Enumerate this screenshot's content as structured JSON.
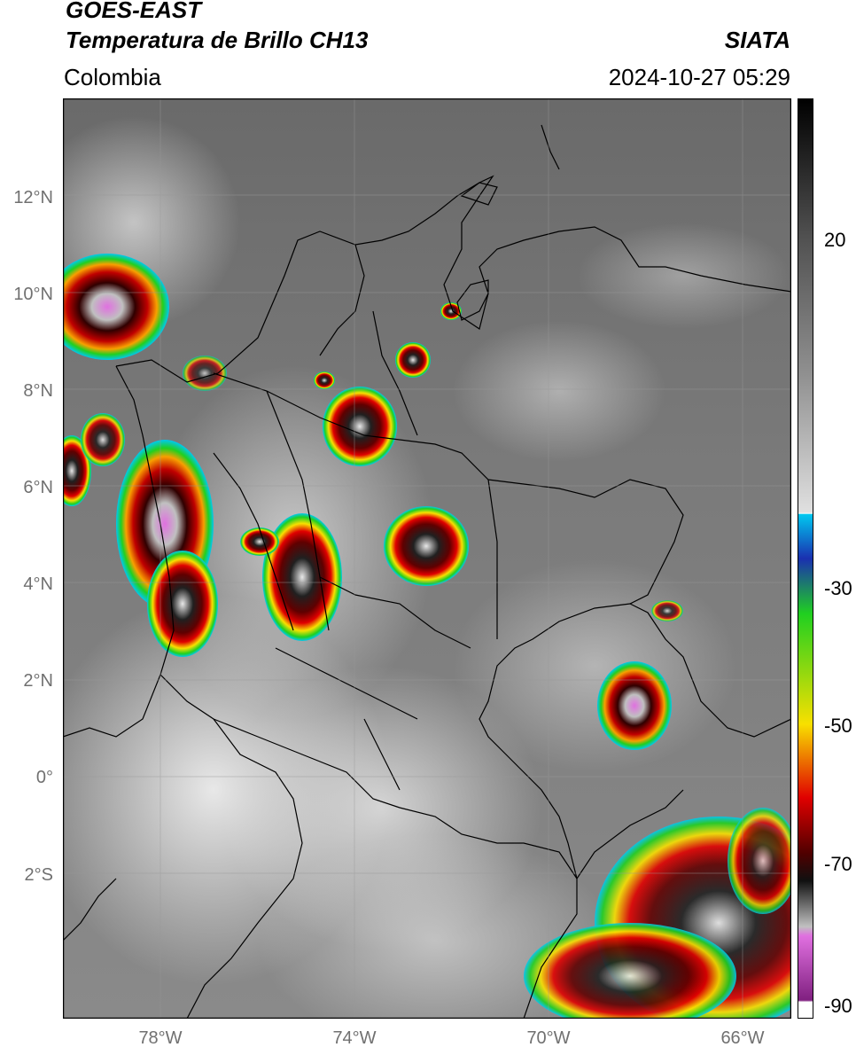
{
  "header": {
    "satellite": "GOES-EAST",
    "product": "Temperatura de Brillo CH13",
    "region": "Colombia",
    "agency": "SIATA",
    "timestamp": "2024-10-27 05:29"
  },
  "map": {
    "lat_ticks": [
      "12°N",
      "10°N",
      "8°N",
      "6°N",
      "4°N",
      "2°N",
      "0°",
      "2°S"
    ],
    "lon_ticks": [
      "78°W",
      "74°W",
      "70°W",
      "66°W"
    ],
    "lat_range": [
      -5,
      14
    ],
    "lon_range": [
      -80,
      -65
    ]
  },
  "colorbar": {
    "labels": [
      "20",
      "-30",
      "-50",
      "-70",
      "-90"
    ],
    "range": [
      -92,
      37
    ],
    "colors": {
      "gray_scale": [
        "#ffffff",
        "#000000"
      ],
      "cyan": "#00c8f0",
      "blue": "#1a30b0",
      "green": "#20d020",
      "yellow": "#f8e000",
      "red": "#e00000",
      "dark_red": "#500000",
      "magenta": "#e070e0",
      "purple": "#802080"
    }
  }
}
